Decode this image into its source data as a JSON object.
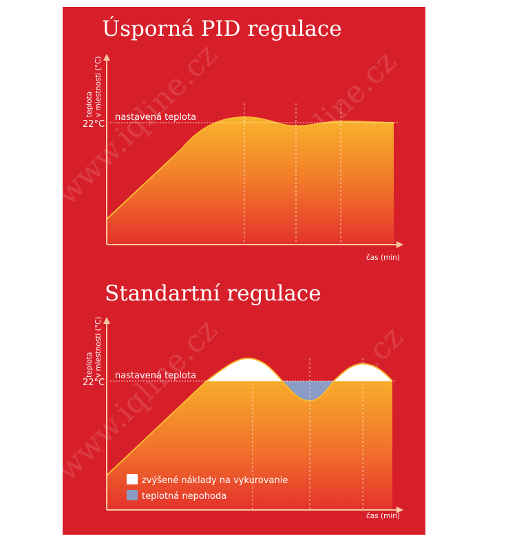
{
  "top_chart": {
    "title": "Úsporná PID regulace",
    "y_axis_label_line1": "teplota",
    "y_axis_label_line2": "v miestnosti (°C)",
    "setpoint_label": "nastavená teplota",
    "setpoint_value": "22°C",
    "x_axis_label": "čas (min)"
  },
  "bottom_chart": {
    "title": "Standartní regulace",
    "y_axis_label_line1": "teplota",
    "y_axis_label_line2": "v miestnosti (°C)",
    "setpoint_label": "nastavená teplota",
    "setpoint_value": "22°C",
    "x_axis_label": "čas (min)",
    "legend": [
      {
        "label": "zvýšené náklady na vykurovanie",
        "color": "#ffffff"
      },
      {
        "label": "teplotná nepohoda",
        "color": "#8a9cc4"
      }
    ]
  },
  "watermark": "www.iqline.cz",
  "colors": {
    "background": "#d71f2a",
    "fill_top": "#f7a62a",
    "fill_bottom": "#e8392a",
    "axis": "#f6c9a0"
  }
}
